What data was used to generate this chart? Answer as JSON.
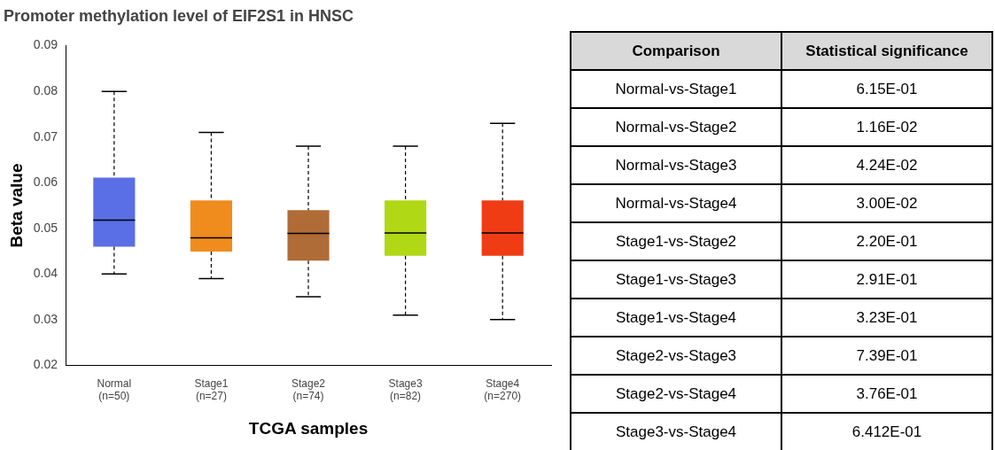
{
  "chart_data": [
    {
      "type": "box",
      "title": "Promoter methylation level of EIF2S1 in HNSC",
      "xlabel": "TCGA samples",
      "ylabel": "Beta value",
      "categories": [
        "Normal\n(n=50)",
        "Stage1\n(n=27)",
        "Stage2\n(n=74)",
        "Stage3\n(n=82)",
        "Stage4\n(n=270)"
      ],
      "colors": [
        "#5a6ee6",
        "#f08c1e",
        "#b06c36",
        "#b0d814",
        "#f03c14"
      ],
      "boxes": [
        {
          "low": 0.04,
          "q1": 0.046,
          "median": 0.0518,
          "q3": 0.0611,
          "high": 0.08
        },
        {
          "low": 0.039,
          "q1": 0.0449,
          "median": 0.0479,
          "q3": 0.0561,
          "high": 0.071
        },
        {
          "low": 0.035,
          "q1": 0.0429,
          "median": 0.0489,
          "q3": 0.054,
          "high": 0.068
        },
        {
          "low": 0.031,
          "q1": 0.044,
          "median": 0.049,
          "q3": 0.0561,
          "high": 0.068
        },
        {
          "low": 0.03,
          "q1": 0.044,
          "median": 0.049,
          "q3": 0.0561,
          "high": 0.073
        }
      ],
      "ylim": [
        0.02,
        0.09
      ],
      "yticks": [
        0.02,
        0.03,
        0.04,
        0.05,
        0.06,
        0.07,
        0.08,
        0.09
      ],
      "grid": false,
      "legend": false
    },
    {
      "type": "other",
      "annotations": [
        "Comparison",
        "Statistical significance",
        "Normal-vs-Stage1",
        "6.15E-01",
        "Normal-vs-Stage2",
        "1.16E-02",
        "Normal-vs-Stage3",
        "4.24E-02",
        "Normal-vs-Stage4",
        "3.00E-02",
        "Stage1-vs-Stage2",
        "2.20E-01",
        "Stage1-vs-Stage3",
        "2.91E-01",
        "Stage1-vs-Stage4",
        "3.23E-01",
        "Stage2-vs-Stage3",
        "7.39E-01",
        "Stage2-vs-Stage4",
        "3.76E-01",
        "Stage3-vs-Stage4",
        "6.412E-01"
      ]
    }
  ]
}
